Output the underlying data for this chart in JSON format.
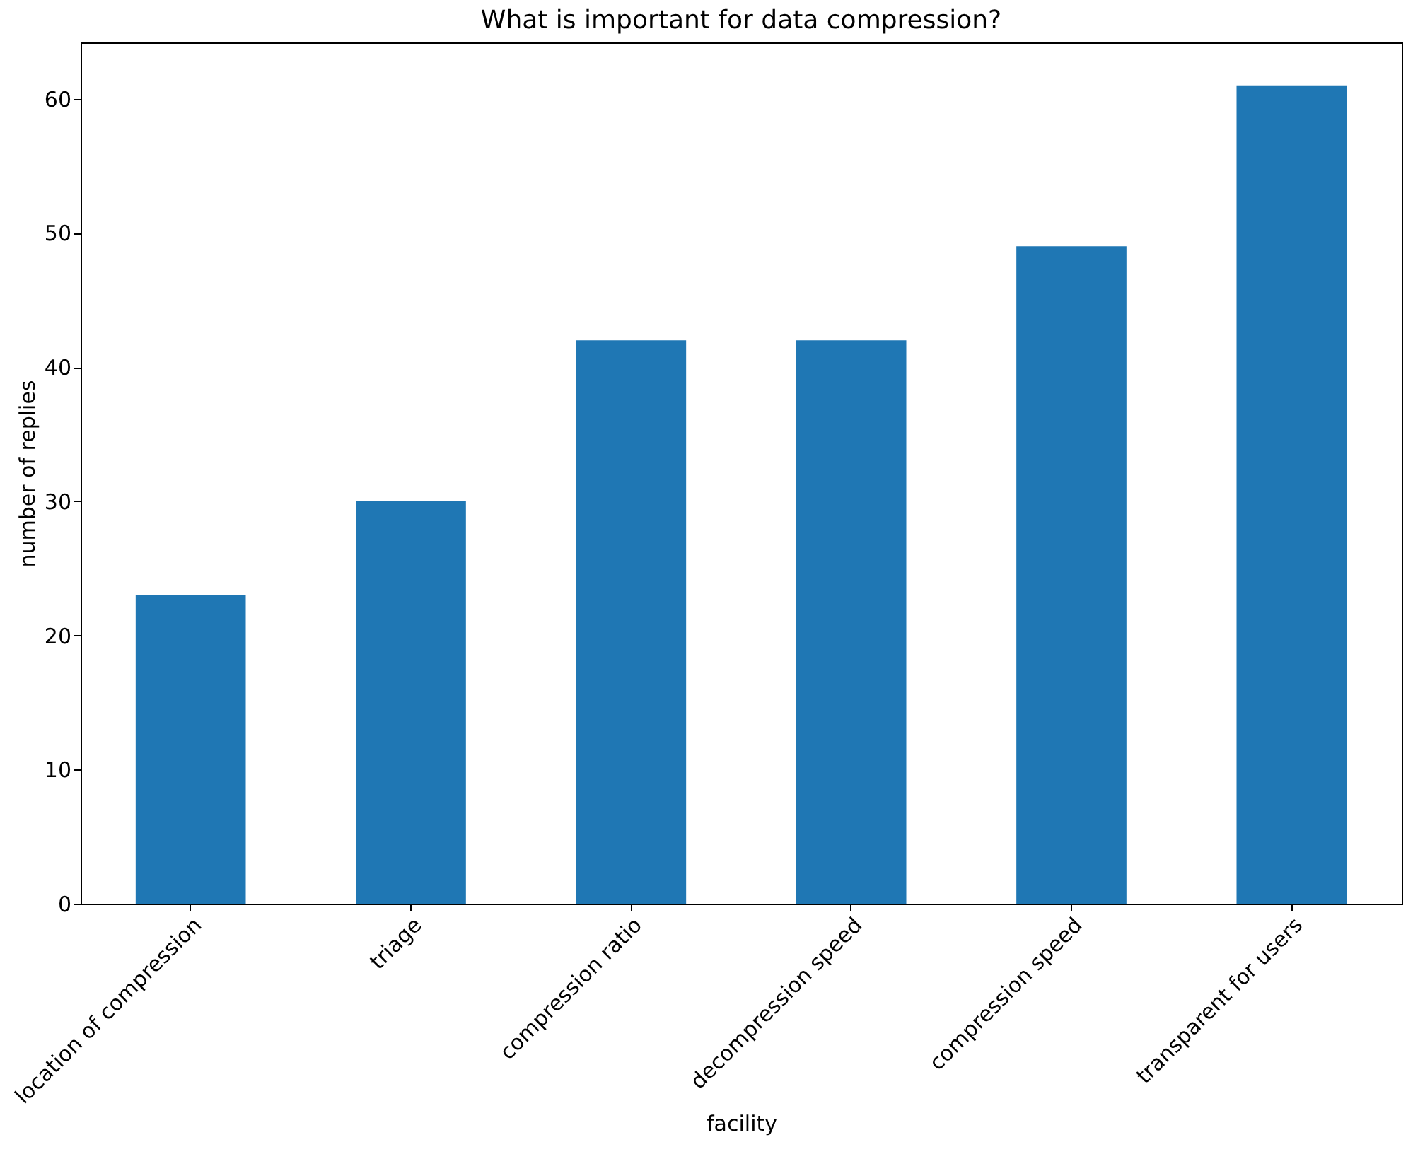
{
  "chart_data": {
    "type": "bar",
    "title": "What is important for data compression?",
    "xlabel": "facility",
    "ylabel": "number of replies",
    "categories": [
      "location of compression",
      "triage",
      "compression ratio",
      "decompression speed",
      "compression speed",
      "transparent for users"
    ],
    "values": [
      23,
      30,
      42,
      42,
      49,
      61
    ],
    "color": "#1f77b4",
    "ylim": [
      0,
      64.2
    ],
    "yticks": [
      0,
      10,
      20,
      30,
      40,
      50,
      60
    ],
    "grid": false
  }
}
